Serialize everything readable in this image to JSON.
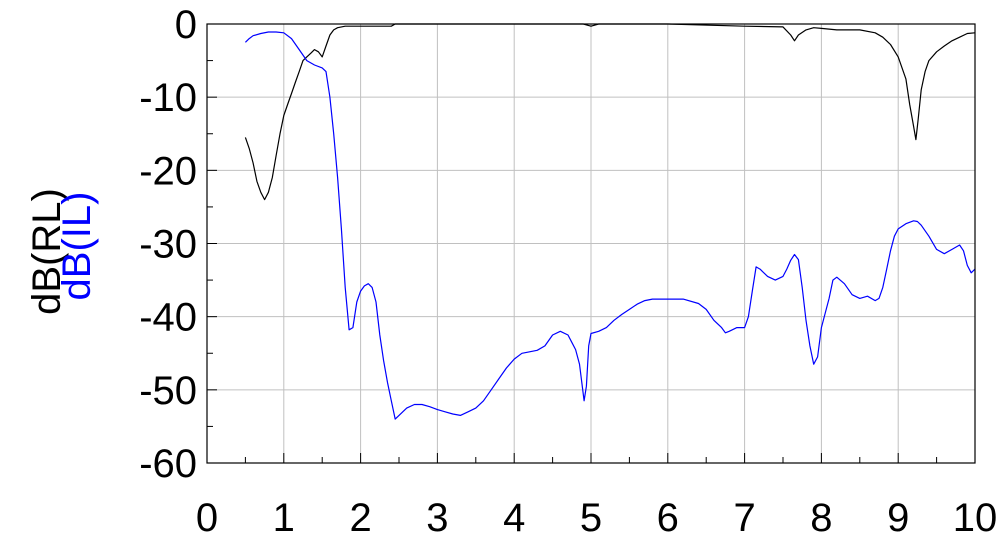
{
  "chart_data": {
    "type": "line",
    "xlim": [
      0,
      10
    ],
    "ylim": [
      -60,
      0
    ],
    "x_ticks": [
      "0",
      "1",
      "2",
      "3",
      "4",
      "5",
      "6",
      "7",
      "8",
      "9",
      "10"
    ],
    "y_ticks": [
      "0",
      "-10",
      "-20",
      "-30",
      "-40",
      "-50",
      "-60"
    ],
    "grid": true,
    "ylabels": [
      {
        "text": "dB(RL)",
        "color": "#000000"
      },
      {
        "text": "dB(IL)",
        "color": "#0000ff"
      }
    ],
    "series": [
      {
        "name": "dB(RL)",
        "color": "#000000",
        "points": [
          [
            0.5,
            -15.5
          ],
          [
            0.55,
            -17
          ],
          [
            0.6,
            -19
          ],
          [
            0.65,
            -21.5
          ],
          [
            0.7,
            -23
          ],
          [
            0.75,
            -24
          ],
          [
            0.8,
            -23
          ],
          [
            0.85,
            -21
          ],
          [
            0.9,
            -18
          ],
          [
            0.95,
            -15
          ],
          [
            1.0,
            -12.5
          ],
          [
            1.05,
            -11
          ],
          [
            1.1,
            -9.5
          ],
          [
            1.15,
            -8
          ],
          [
            1.2,
            -6.5
          ],
          [
            1.25,
            -5
          ],
          [
            1.3,
            -4.5
          ],
          [
            1.35,
            -4
          ],
          [
            1.4,
            -3.5
          ],
          [
            1.45,
            -3.8
          ],
          [
            1.5,
            -4.5
          ],
          [
            1.55,
            -3
          ],
          [
            1.6,
            -1.5
          ],
          [
            1.65,
            -0.8
          ],
          [
            1.7,
            -0.5
          ],
          [
            1.8,
            -0.3
          ],
          [
            2.0,
            -0.3
          ],
          [
            2.4,
            -0.3
          ],
          [
            2.45,
            0
          ],
          [
            3.0,
            0
          ],
          [
            4.0,
            0
          ],
          [
            4.9,
            0
          ],
          [
            5.0,
            -0.3
          ],
          [
            5.1,
            0
          ],
          [
            6.0,
            0
          ],
          [
            7.0,
            -0.3
          ],
          [
            7.5,
            -0.4
          ],
          [
            7.6,
            -1.5
          ],
          [
            7.65,
            -2.3
          ],
          [
            7.7,
            -1.5
          ],
          [
            7.8,
            -0.8
          ],
          [
            7.9,
            -0.5
          ],
          [
            8.0,
            -0.6
          ],
          [
            8.2,
            -0.8
          ],
          [
            8.5,
            -0.8
          ],
          [
            8.7,
            -1.2
          ],
          [
            8.8,
            -1.8
          ],
          [
            8.9,
            -2.8
          ],
          [
            9.0,
            -4.5
          ],
          [
            9.1,
            -7.5
          ],
          [
            9.15,
            -11
          ],
          [
            9.2,
            -14
          ],
          [
            9.23,
            -15.8
          ],
          [
            9.26,
            -13
          ],
          [
            9.3,
            -9
          ],
          [
            9.35,
            -6.5
          ],
          [
            9.4,
            -5
          ],
          [
            9.5,
            -3.8
          ],
          [
            9.6,
            -3
          ],
          [
            9.7,
            -2.3
          ],
          [
            9.8,
            -1.8
          ],
          [
            9.9,
            -1.3
          ],
          [
            10.0,
            -1.2
          ]
        ]
      },
      {
        "name": "dB(IL)",
        "color": "#0000ff",
        "points": [
          [
            0.5,
            -2.5
          ],
          [
            0.55,
            -2
          ],
          [
            0.6,
            -1.6
          ],
          [
            0.7,
            -1.3
          ],
          [
            0.8,
            -1.1
          ],
          [
            0.9,
            -1.1
          ],
          [
            1.0,
            -1.2
          ],
          [
            1.1,
            -2
          ],
          [
            1.2,
            -3.5
          ],
          [
            1.3,
            -5
          ],
          [
            1.4,
            -5.6
          ],
          [
            1.5,
            -6
          ],
          [
            1.55,
            -6.5
          ],
          [
            1.6,
            -10
          ],
          [
            1.65,
            -15
          ],
          [
            1.7,
            -21
          ],
          [
            1.75,
            -28
          ],
          [
            1.8,
            -36
          ],
          [
            1.85,
            -41.8
          ],
          [
            1.9,
            -41.5
          ],
          [
            1.95,
            -38
          ],
          [
            2.0,
            -36.5
          ],
          [
            2.05,
            -35.8
          ],
          [
            2.1,
            -35.5
          ],
          [
            2.15,
            -36
          ],
          [
            2.2,
            -38
          ],
          [
            2.25,
            -42.5
          ],
          [
            2.3,
            -46
          ],
          [
            2.35,
            -49
          ],
          [
            2.4,
            -51.5
          ],
          [
            2.45,
            -54
          ],
          [
            2.5,
            -53.5
          ],
          [
            2.6,
            -52.5
          ],
          [
            2.7,
            -52
          ],
          [
            2.8,
            -52
          ],
          [
            2.9,
            -52.3
          ],
          [
            3.0,
            -52.7
          ],
          [
            3.1,
            -53
          ],
          [
            3.2,
            -53.3
          ],
          [
            3.3,
            -53.5
          ],
          [
            3.4,
            -53
          ],
          [
            3.5,
            -52.5
          ],
          [
            3.6,
            -51.5
          ],
          [
            3.7,
            -50
          ],
          [
            3.8,
            -48.5
          ],
          [
            3.9,
            -47
          ],
          [
            4.0,
            -45.8
          ],
          [
            4.1,
            -45
          ],
          [
            4.2,
            -44.8
          ],
          [
            4.3,
            -44.6
          ],
          [
            4.4,
            -44
          ],
          [
            4.5,
            -42.5
          ],
          [
            4.6,
            -42
          ],
          [
            4.7,
            -42.5
          ],
          [
            4.75,
            -43.5
          ],
          [
            4.8,
            -44.5
          ],
          [
            4.85,
            -46.5
          ],
          [
            4.88,
            -49
          ],
          [
            4.91,
            -51.5
          ],
          [
            4.94,
            -49.5
          ],
          [
            4.97,
            -44
          ],
          [
            5.0,
            -42.3
          ],
          [
            5.1,
            -42
          ],
          [
            5.2,
            -41.5
          ],
          [
            5.3,
            -40.5
          ],
          [
            5.4,
            -39.7
          ],
          [
            5.5,
            -39
          ],
          [
            5.6,
            -38.3
          ],
          [
            5.7,
            -37.8
          ],
          [
            5.8,
            -37.6
          ],
          [
            6.0,
            -37.6
          ],
          [
            6.2,
            -37.6
          ],
          [
            6.4,
            -38.2
          ],
          [
            6.5,
            -39
          ],
          [
            6.6,
            -40.5
          ],
          [
            6.7,
            -41.5
          ],
          [
            6.75,
            -42.2
          ],
          [
            6.8,
            -42
          ],
          [
            6.9,
            -41.5
          ],
          [
            7.0,
            -41.5
          ],
          [
            7.05,
            -40
          ],
          [
            7.1,
            -36.5
          ],
          [
            7.15,
            -33.2
          ],
          [
            7.2,
            -33.5
          ],
          [
            7.3,
            -34.5
          ],
          [
            7.4,
            -35
          ],
          [
            7.5,
            -34.5
          ],
          [
            7.55,
            -33.5
          ],
          [
            7.6,
            -32.3
          ],
          [
            7.65,
            -31.5
          ],
          [
            7.7,
            -32.2
          ],
          [
            7.75,
            -36
          ],
          [
            7.8,
            -40.5
          ],
          [
            7.85,
            -44
          ],
          [
            7.9,
            -46.5
          ],
          [
            7.95,
            -45.5
          ],
          [
            8.0,
            -41.5
          ],
          [
            8.1,
            -37.5
          ],
          [
            8.15,
            -35
          ],
          [
            8.2,
            -34.6
          ],
          [
            8.3,
            -35.5
          ],
          [
            8.4,
            -37
          ],
          [
            8.5,
            -37.5
          ],
          [
            8.6,
            -37.2
          ],
          [
            8.7,
            -37.8
          ],
          [
            8.75,
            -37.5
          ],
          [
            8.8,
            -36
          ],
          [
            8.85,
            -33.5
          ],
          [
            8.9,
            -31
          ],
          [
            8.95,
            -29
          ],
          [
            9.0,
            -28
          ],
          [
            9.1,
            -27.3
          ],
          [
            9.2,
            -26.9
          ],
          [
            9.25,
            -27
          ],
          [
            9.3,
            -27.5
          ],
          [
            9.4,
            -29
          ],
          [
            9.5,
            -30.8
          ],
          [
            9.6,
            -31.4
          ],
          [
            9.7,
            -30.8
          ],
          [
            9.8,
            -30.2
          ],
          [
            9.85,
            -31
          ],
          [
            9.9,
            -33
          ],
          [
            9.95,
            -34
          ],
          [
            10.0,
            -33.5
          ]
        ]
      }
    ]
  }
}
